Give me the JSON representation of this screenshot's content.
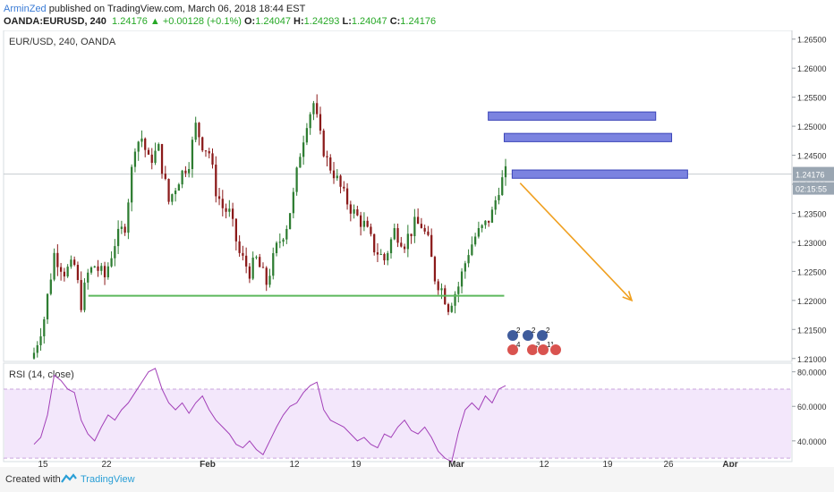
{
  "header": {
    "author": "ArminZed",
    "published": " published on TradingView.com, March 06, 2018 18:44 EST",
    "symbol_line": "OANDA:EURUSD, 240",
    "last": "1.24176",
    "change": "+0.00128 (+0.1%)",
    "o_label": "O:",
    "o": "1.24047",
    "h_label": "H:",
    "h": "1.24293",
    "l_label": "L:",
    "l": "1.24047",
    "c_label": "C:",
    "c": "1.24176"
  },
  "footer": {
    "created": "Created with",
    "brand": "TradingView"
  },
  "colors": {
    "bull": "#2e7d32",
    "bear": "#8b1a1a",
    "support": "#5cb85c",
    "zone_fill": "#7b83e0",
    "zone_border": "#3a44b8",
    "arrow": "#f0a020",
    "rsi_line": "#a23fb8",
    "rsi_band": "#f3e7fb",
    "price_label": "#9aa6b2"
  },
  "chart_data": [
    {
      "type": "candlestick",
      "title": "EUR/USD, 240, OANDA",
      "ylim": [
        1.2095,
        1.2665
      ],
      "y_ticks": [
        "1.26500",
        "1.26000",
        "1.25500",
        "1.25000",
        "1.24500",
        "1.24000",
        "1.23500",
        "1.23000",
        "1.22500",
        "1.22000",
        "1.21500",
        "1.21000"
      ],
      "x_ticks": [
        "15",
        "22",
        "Feb",
        "12",
        "19",
        "Mar",
        "12",
        "19",
        "26",
        "Apr"
      ],
      "last_price": "1.24176",
      "countdown": "02:15:55",
      "close_path": [
        [
          0,
          1.211
        ],
        [
          3,
          1.217
        ],
        [
          6,
          1.228
        ],
        [
          9,
          1.225
        ],
        [
          12,
          1.226
        ],
        [
          14,
          1.2195
        ],
        [
          16,
          1.2245
        ],
        [
          18,
          1.226
        ],
        [
          21,
          1.224
        ],
        [
          24,
          1.23
        ],
        [
          27,
          1.233
        ],
        [
          30,
          1.247
        ],
        [
          32,
          1.248
        ],
        [
          34,
          1.244
        ],
        [
          37,
          1.246
        ],
        [
          40,
          1.237
        ],
        [
          43,
          1.241
        ],
        [
          46,
          1.244
        ],
        [
          48,
          1.25
        ],
        [
          50,
          1.247
        ],
        [
          52,
          1.2455
        ],
        [
          54,
          1.239
        ],
        [
          56,
          1.236
        ],
        [
          58,
          1.235
        ],
        [
          61,
          1.228
        ],
        [
          64,
          1.225
        ],
        [
          66,
          1.227
        ],
        [
          69,
          1.223
        ],
        [
          72,
          1.229
        ],
        [
          75,
          1.233
        ],
        [
          77,
          1.238
        ],
        [
          79,
          1.2455
        ],
        [
          81,
          1.251
        ],
        [
          83,
          1.254
        ],
        [
          85,
          1.248
        ],
        [
          87,
          1.244
        ],
        [
          89,
          1.242
        ],
        [
          92,
          1.238
        ],
        [
          95,
          1.235
        ],
        [
          98,
          1.233
        ],
        [
          101,
          1.229
        ],
        [
          104,
          1.227
        ],
        [
          107,
          1.232
        ],
        [
          110,
          1.23
        ],
        [
          113,
          1.233
        ],
        [
          115,
          1.233
        ],
        [
          117,
          1.23
        ],
        [
          119,
          1.224
        ],
        [
          121,
          1.222
        ],
        [
          123,
          1.219
        ],
        [
          126,
          1.2225
        ],
        [
          129,
          1.2285
        ],
        [
          131,
          1.231
        ],
        [
          134,
          1.233
        ],
        [
          136,
          1.235
        ],
        [
          138,
          1.2395
        ],
        [
          140,
          1.2418
        ]
      ],
      "annotations": {
        "support_level": 1.2208,
        "support_from": "Jan 20",
        "support_to": "Mar 7",
        "zones": [
          {
            "low": 1.2515,
            "high": 1.252,
            "from": "Mar 5",
            "to": "Mar 26"
          },
          {
            "low": 1.2478,
            "high": 1.2483,
            "from": "Mar 7",
            "to": "Mar 28"
          },
          {
            "low": 1.2415,
            "high": 1.242,
            "from": "Mar 8",
            "to": "Mar 30"
          }
        ],
        "forecast_arrow": {
          "from_date": "Mar 9",
          "from_price": 1.2402,
          "to_date": "Mar 23",
          "to_price": 1.22
        }
      },
      "event_badges": [
        "2",
        "2",
        "2",
        "4",
        "3",
        "11"
      ]
    },
    {
      "type": "line",
      "title": "RSI (14, close)",
      "ylim": [
        28,
        85
      ],
      "y_ticks": [
        "80.0000",
        "60.0000",
        "40.0000"
      ],
      "band": [
        30,
        70
      ],
      "values": [
        [
          0,
          38
        ],
        [
          2,
          42
        ],
        [
          4,
          55
        ],
        [
          6,
          78
        ],
        [
          8,
          75
        ],
        [
          10,
          70
        ],
        [
          12,
          68
        ],
        [
          14,
          52
        ],
        [
          16,
          44
        ],
        [
          18,
          40
        ],
        [
          20,
          48
        ],
        [
          22,
          55
        ],
        [
          24,
          52
        ],
        [
          26,
          58
        ],
        [
          28,
          62
        ],
        [
          30,
          68
        ],
        [
          32,
          74
        ],
        [
          34,
          80
        ],
        [
          36,
          82
        ],
        [
          38,
          70
        ],
        [
          40,
          62
        ],
        [
          42,
          58
        ],
        [
          44,
          62
        ],
        [
          46,
          56
        ],
        [
          48,
          62
        ],
        [
          50,
          66
        ],
        [
          52,
          58
        ],
        [
          54,
          52
        ],
        [
          56,
          48
        ],
        [
          58,
          44
        ],
        [
          60,
          38
        ],
        [
          62,
          36
        ],
        [
          64,
          40
        ],
        [
          66,
          35
        ],
        [
          68,
          32
        ],
        [
          70,
          40
        ],
        [
          72,
          48
        ],
        [
          74,
          55
        ],
        [
          76,
          60
        ],
        [
          78,
          62
        ],
        [
          80,
          68
        ],
        [
          82,
          72
        ],
        [
          84,
          74
        ],
        [
          86,
          58
        ],
        [
          88,
          52
        ],
        [
          90,
          50
        ],
        [
          92,
          48
        ],
        [
          94,
          44
        ],
        [
          96,
          40
        ],
        [
          98,
          42
        ],
        [
          100,
          38
        ],
        [
          102,
          36
        ],
        [
          104,
          44
        ],
        [
          106,
          42
        ],
        [
          108,
          48
        ],
        [
          110,
          52
        ],
        [
          112,
          46
        ],
        [
          114,
          44
        ],
        [
          116,
          48
        ],
        [
          118,
          42
        ],
        [
          120,
          34
        ],
        [
          122,
          30
        ],
        [
          124,
          28
        ],
        [
          126,
          45
        ],
        [
          128,
          58
        ],
        [
          130,
          62
        ],
        [
          132,
          58
        ],
        [
          134,
          66
        ],
        [
          136,
          62
        ],
        [
          138,
          70
        ],
        [
          140,
          72
        ]
      ]
    }
  ]
}
